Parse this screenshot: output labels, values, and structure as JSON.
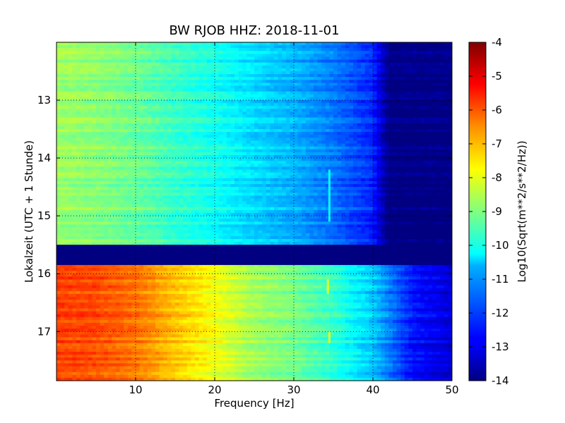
{
  "chart_data": {
    "type": "heatmap",
    "title": "BW RJOB HHZ: 2018-11-01",
    "xlabel": "Frequency [Hz]",
    "ylabel": "Lokalzeit (UTC + 1 Stunde)",
    "xlim": [
      0,
      50
    ],
    "ylim": [
      12.0,
      17.85
    ],
    "y_inverted": true,
    "x_ticks": [
      "10",
      "20",
      "30",
      "40",
      "50"
    ],
    "y_ticks": [
      "13",
      "14",
      "15",
      "16",
      "17"
    ],
    "grid": true,
    "grid_style": "dotted",
    "colormap": "jet",
    "colorbar": {
      "label": "Log10(Sqrt(m**2/s**2/Hz))",
      "range": [
        -14,
        -4
      ],
      "ticks": [
        "-4",
        "-5",
        "-6",
        "-7",
        "-8",
        "-9",
        "-10",
        "-11",
        "-12",
        "-13",
        "-14"
      ]
    },
    "freq_profile": [
      {
        "f": 0,
        "before": -8.7,
        "after": -5.9
      },
      {
        "f": 5,
        "before": -8.9,
        "after": -6.0
      },
      {
        "f": 10,
        "before": -9.2,
        "after": -6.4
      },
      {
        "f": 15,
        "before": -9.7,
        "after": -7.2
      },
      {
        "f": 20,
        "before": -10.1,
        "after": -7.9
      },
      {
        "f": 25,
        "before": -10.6,
        "after": -8.7
      },
      {
        "f": 30,
        "before": -11.0,
        "after": -9.1
      },
      {
        "f": 35,
        "before": -11.6,
        "after": -9.8
      },
      {
        "f": 40,
        "before": -12.4,
        "after": -10.8
      },
      {
        "f": 42,
        "before": -14.0,
        "after": -11.5
      },
      {
        "f": 45,
        "before": -14.0,
        "after": -12.6
      },
      {
        "f": 50,
        "before": -14.0,
        "after": -13.2
      }
    ],
    "gap": {
      "start": 15.52,
      "end": 15.87,
      "value": -14
    },
    "features": [
      {
        "freq": 34.5,
        "t_start": 14.2,
        "t_end": 15.1,
        "value": -10.2
      },
      {
        "freq": 34.3,
        "t_start": 16.1,
        "t_end": 16.35,
        "value": -7.9
      },
      {
        "freq": 34.5,
        "t_start": 17.0,
        "t_end": 17.2,
        "value": -8.1
      }
    ]
  }
}
